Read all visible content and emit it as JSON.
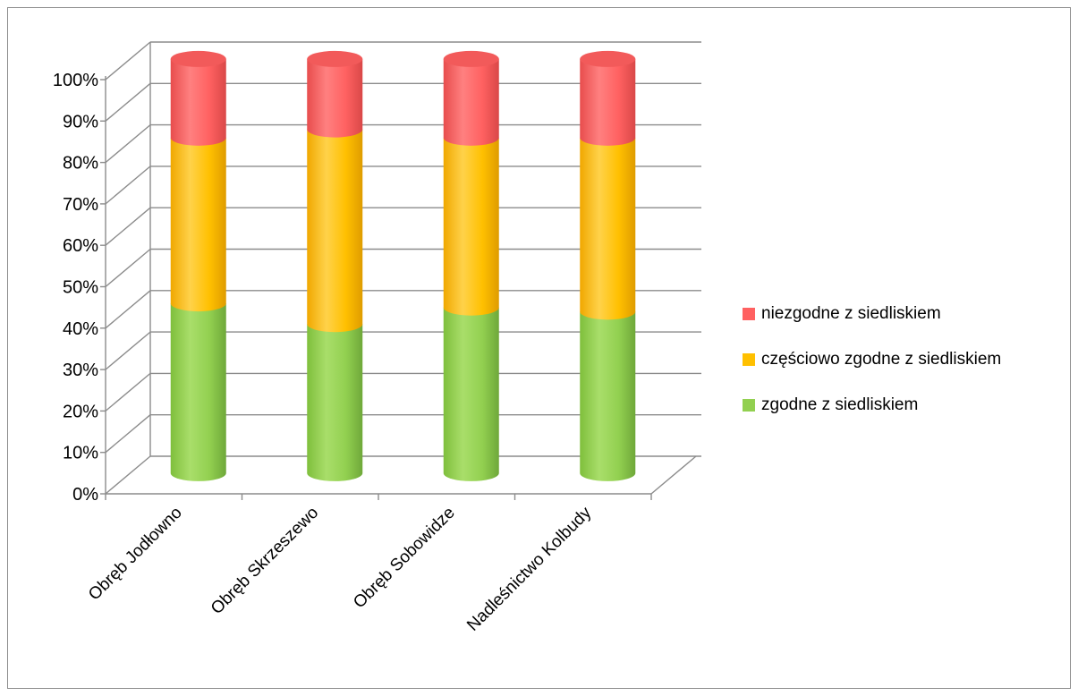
{
  "chart_data": {
    "type": "bar",
    "stacked": "percent",
    "style": "3d-cylinder",
    "categories": [
      "Obręb Jodłowno",
      "Obręb Skrzeszewo",
      "Obręb Sobowidze",
      "Nadleśnictwo Kolbudy"
    ],
    "series": [
      {
        "name": "zgodne z siedliskiem",
        "values": [
          41,
          36,
          40,
          39
        ],
        "color": "#92d050"
      },
      {
        "name": "częściowo zgodne z siedliskiem",
        "values": [
          40,
          47,
          41,
          42
        ],
        "color": "#ffc000"
      },
      {
        "name": "niezgodne z siedliskiem",
        "values": [
          19,
          17,
          19,
          19
        ],
        "color": "#ff6161"
      }
    ],
    "y_ticks": [
      "0%",
      "10%",
      "20%",
      "30%",
      "40%",
      "50%",
      "60%",
      "70%",
      "80%",
      "90%",
      "100%"
    ],
    "ylim": [
      0,
      100
    ],
    "grid": true,
    "legend_position": "right",
    "legend_order": [
      "niezgodne z siedliskiem",
      "częściowo zgodne z siedliskiem",
      "zgodne z siedliskiem"
    ]
  }
}
